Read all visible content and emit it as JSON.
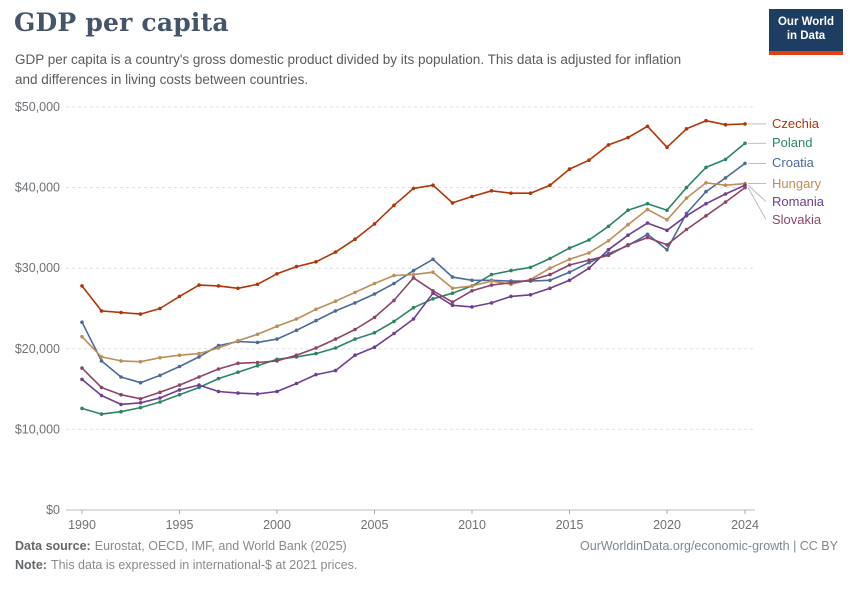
{
  "header": {
    "title": "GDP per capita",
    "subtitle": "GDP per capita is a country's gross domestic product divided by its population. This data is adjusted for inflation and differences in living costs between countries.",
    "logo_line1": "Our World",
    "logo_line2": "in Data"
  },
  "footer": {
    "datasource_label": "Data source:",
    "datasource_text": "Eurostat, OECD, IMF, and World Bank (2025)",
    "note_label": "Note:",
    "note_text": "This data is expressed in international-$ at 2021 prices.",
    "right_text": "OurWorldinData.org/economic-growth | CC BY"
  },
  "colors": {
    "czechia": "#B13507",
    "poland": "#2C8465",
    "croatia": "#4C6A9C",
    "hungary": "#BC8E5A",
    "romania": "#6D3E91",
    "slovakia": "#8C4569"
  },
  "chart_data": {
    "type": "line",
    "title": "GDP per capita",
    "xlabel": "",
    "ylabel": "",
    "ylim": [
      0,
      50000
    ],
    "grid": "dashed-horizontal",
    "legend_position": "right-of-lines",
    "x": [
      1990,
      1991,
      1992,
      1993,
      1994,
      1995,
      1996,
      1997,
      1998,
      1999,
      2000,
      2001,
      2002,
      2003,
      2004,
      2005,
      2006,
      2007,
      2008,
      2009,
      2010,
      2011,
      2012,
      2013,
      2014,
      2015,
      2016,
      2017,
      2018,
      2019,
      2020,
      2021,
      2022,
      2023,
      2024
    ],
    "x_ticks": [
      1990,
      1995,
      2000,
      2005,
      2010,
      2015,
      2020,
      2024
    ],
    "y_ticks": [
      {
        "value": 0,
        "label": "$0"
      },
      {
        "value": 10000,
        "label": "$10,000"
      },
      {
        "value": 20000,
        "label": "$20,000"
      },
      {
        "value": 30000,
        "label": "$30,000"
      },
      {
        "value": 40000,
        "label": "$40,000"
      },
      {
        "value": 50000,
        "label": "$50,000"
      }
    ],
    "series": [
      {
        "name": "Czechia",
        "color": "#B13507",
        "values": [
          27800,
          24700,
          24500,
          24300,
          25000,
          26500,
          27900,
          27800,
          27500,
          28000,
          29300,
          30200,
          30800,
          32000,
          33600,
          35500,
          37800,
          39900,
          40300,
          38100,
          38900,
          39600,
          39300,
          39300,
          40300,
          42300,
          43400,
          45300,
          46200,
          47600,
          45000,
          47300,
          48300,
          47800,
          47900
        ]
      },
      {
        "name": "Poland",
        "color": "#2C8465",
        "values": [
          12600,
          11900,
          12200,
          12700,
          13400,
          14300,
          15200,
          16300,
          17100,
          17900,
          18700,
          19000,
          19400,
          20100,
          21200,
          22000,
          23400,
          25100,
          26200,
          26900,
          27800,
          29200,
          29700,
          30100,
          31200,
          32500,
          33500,
          35200,
          37200,
          38000,
          37200,
          40000,
          42500,
          43500,
          45500
        ]
      },
      {
        "name": "Croatia",
        "color": "#4C6A9C",
        "values": [
          23300,
          18500,
          16500,
          15800,
          16700,
          17800,
          19000,
          20400,
          20900,
          20800,
          21200,
          22300,
          23500,
          24700,
          25700,
          26800,
          28100,
          29700,
          31100,
          28900,
          28500,
          28500,
          28400,
          28400,
          28500,
          29500,
          30700,
          31800,
          32800,
          34200,
          32300,
          36800,
          39500,
          41200,
          43000
        ]
      },
      {
        "name": "Hungary",
        "color": "#BC8E5A",
        "values": [
          21500,
          19000,
          18500,
          18400,
          18900,
          19200,
          19400,
          20100,
          21000,
          21800,
          22800,
          23700,
          24900,
          25900,
          27000,
          28100,
          29100,
          29200,
          29500,
          27500,
          27800,
          28400,
          28000,
          28600,
          30000,
          31100,
          31900,
          33400,
          35400,
          37300,
          36000,
          38700,
          40600,
          40300,
          40500
        ]
      },
      {
        "name": "Romania",
        "color": "#6D3E91",
        "values": [
          16200,
          14200,
          13100,
          13300,
          13900,
          14900,
          15500,
          14700,
          14500,
          14400,
          14700,
          15700,
          16800,
          17300,
          19200,
          20200,
          21900,
          23700,
          26900,
          25400,
          25200,
          25700,
          26500,
          26700,
          27500,
          28500,
          30000,
          32300,
          34100,
          35600,
          34700,
          36500,
          38000,
          39200,
          40300
        ]
      },
      {
        "name": "Slovakia",
        "color": "#8C4569",
        "values": [
          17600,
          15200,
          14300,
          13800,
          14600,
          15500,
          16500,
          17500,
          18200,
          18300,
          18500,
          19200,
          20100,
          21200,
          22400,
          23900,
          26000,
          28800,
          27200,
          25800,
          27200,
          27900,
          28200,
          28500,
          29200,
          30400,
          31000,
          31600,
          32900,
          33800,
          32900,
          34800,
          36500,
          38200,
          40000
        ]
      }
    ]
  }
}
